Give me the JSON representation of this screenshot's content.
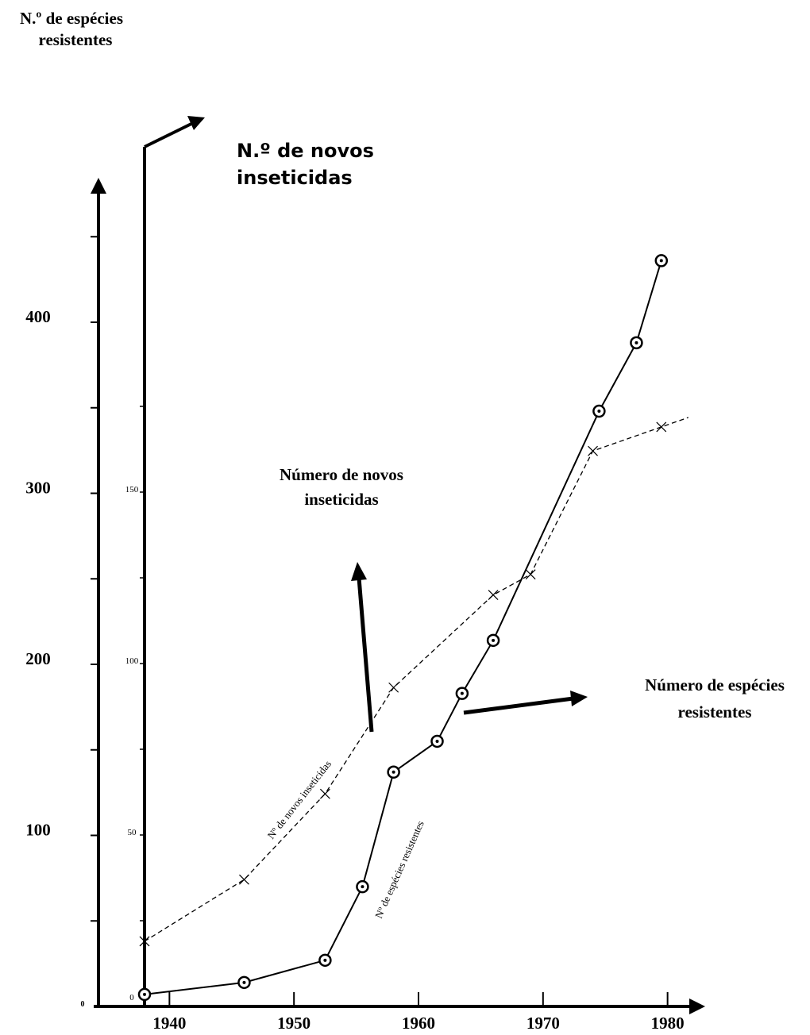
{
  "chart_data": {
    "type": "line",
    "x_label": "",
    "left_axis": {
      "label_line1": "N.º de espécies",
      "label_line2": "resistentes",
      "range": [
        0,
        480
      ],
      "tick_labels": [
        "0",
        "100",
        "200",
        "300",
        "400"
      ]
    },
    "inner_axis": {
      "label_line1": "N.º de novos",
      "label_line2": "inseticidas",
      "range": [
        0,
        190
      ],
      "tick_labels": [
        "0",
        "50",
        "100",
        "150"
      ]
    },
    "x_ticks": [
      "1940",
      "1950",
      "1960",
      "1970",
      "1980"
    ],
    "x_range": [
      1938,
      1982
    ],
    "series": [
      {
        "name": "Nº de espécies resistentes",
        "axis": "left",
        "style": "solid",
        "marker": "circle-dot",
        "points": [
          [
            1938,
            7
          ],
          [
            1946,
            14
          ],
          [
            1952.5,
            27
          ],
          [
            1955.5,
            70
          ],
          [
            1958,
            137
          ],
          [
            1961.5,
            155
          ],
          [
            1963.5,
            183
          ],
          [
            1966,
            214
          ],
          [
            1974.5,
            348
          ],
          [
            1977.5,
            388
          ],
          [
            1979.5,
            436
          ]
        ]
      },
      {
        "name": "Nº de novos inseticidas",
        "axis": "inner",
        "style": "dashed",
        "marker": "x",
        "points": [
          [
            1938,
            19
          ],
          [
            1946,
            37
          ],
          [
            1952.5,
            62
          ],
          [
            1958,
            93
          ],
          [
            1966,
            120
          ],
          [
            1969,
            126
          ],
          [
            1974,
            162
          ],
          [
            1979.5,
            169
          ]
        ]
      }
    ],
    "annotations": {
      "novos_line1": "Número de novos",
      "novos_line2": "inseticidas",
      "especies_line1": "Número de espécies",
      "especies_line2": "resistentes"
    }
  }
}
